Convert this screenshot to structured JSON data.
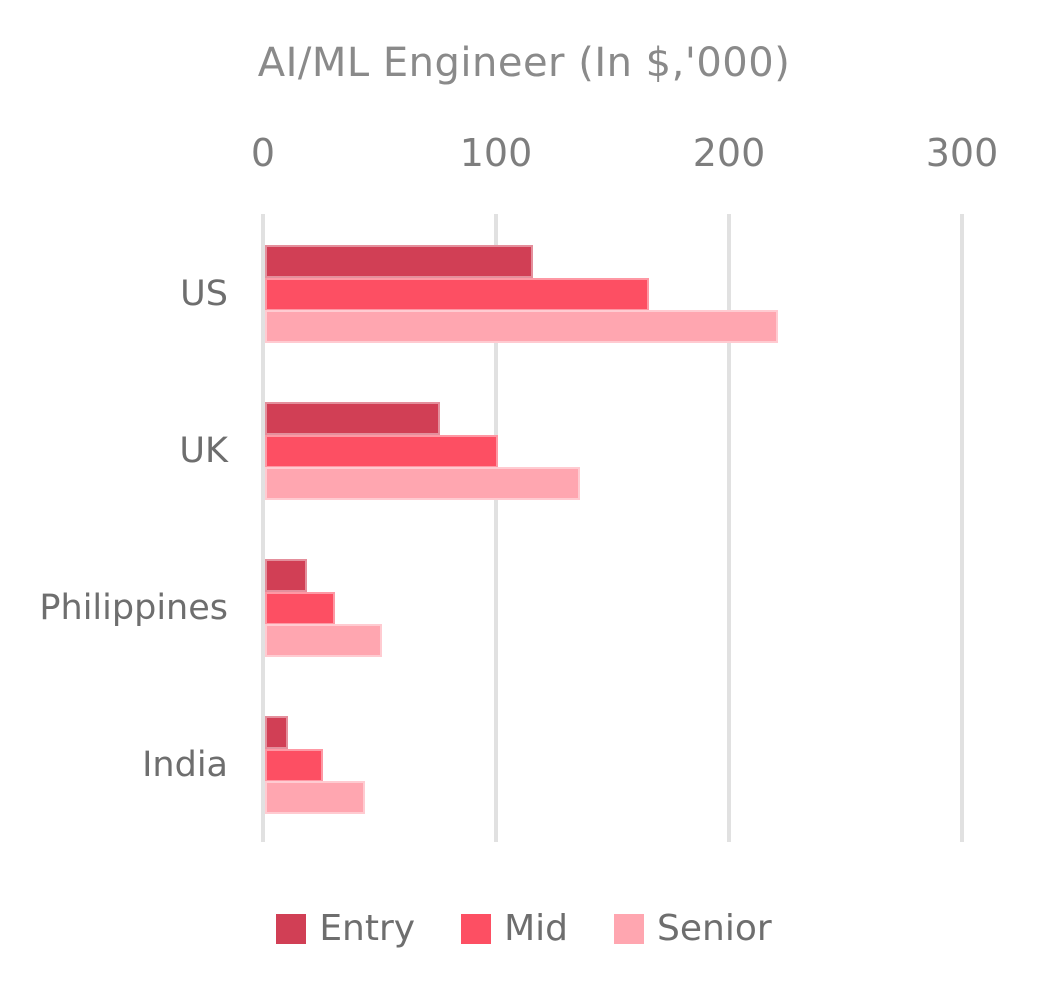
{
  "chart_data": {
    "type": "bar",
    "orientation": "horizontal",
    "title": "AI/ML Engineer (In $,'000)",
    "categories": [
      "US",
      "UK",
      "Philippines",
      "India"
    ],
    "series": [
      {
        "name": "Entry",
        "color": "#D13F55",
        "values": [
          115,
          75,
          18,
          10
        ]
      },
      {
        "name": "Mid",
        "color": "#FD4F63",
        "values": [
          165,
          100,
          30,
          25
        ]
      },
      {
        "name": "Senior",
        "color": "#FFA6B0",
        "values": [
          220,
          135,
          50,
          43
        ]
      }
    ],
    "x_axis": {
      "ticks": [
        0,
        100,
        200,
        300
      ],
      "min": 0,
      "max": 300
    },
    "grid": true,
    "legend": {
      "position": "bottom",
      "labels": [
        "Entry",
        "Mid",
        "Senior"
      ]
    },
    "text_colors": {
      "title": "#8a8a8a",
      "ticks": "#7e7e7e",
      "categories": "#6e6e6e",
      "legend": "#6e6e6e"
    }
  }
}
